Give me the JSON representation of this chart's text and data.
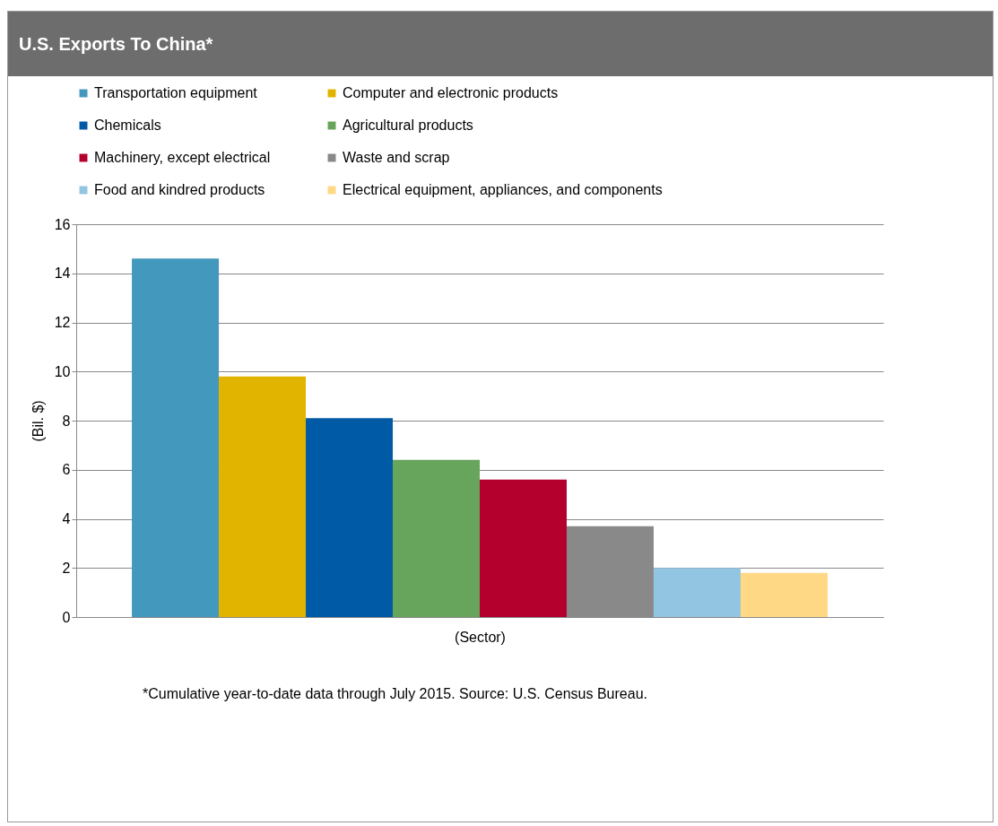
{
  "chart_data": {
    "type": "bar",
    "title": "U.S. Exports To China*",
    "xlabel": "(Sector)",
    "ylabel": "(Bil. $)",
    "categories": [
      null
    ],
    "series": [
      {
        "name": "Transportation equipment",
        "color": "#4398bd",
        "values": [
          14.6
        ]
      },
      {
        "name": "Computer and electronic products",
        "color": "#e1b400",
        "values": [
          9.8
        ]
      },
      {
        "name": "Chemicals",
        "color": "#005aa5",
        "values": [
          8.1
        ]
      },
      {
        "name": "Agricultural products",
        "color": "#67a45c",
        "values": [
          6.4
        ]
      },
      {
        "name": "Machinery, except electrical",
        "color": "#b3002d",
        "values": [
          5.6
        ]
      },
      {
        "name": "Waste and scrap",
        "color": "#898989",
        "values": [
          3.7
        ]
      },
      {
        "name": "Food and kindred products",
        "color": "#92c5e1",
        "values": [
          2.0
        ]
      },
      {
        "name": "Electrical equipment, appliances, and components",
        "color": "#ffd885",
        "values": [
          1.8
        ]
      }
    ],
    "ylim": [
      0,
      16
    ],
    "yticks": [
      0,
      2,
      4,
      6,
      8,
      10,
      12,
      14,
      16
    ],
    "grid": "y",
    "legend": "top",
    "tick_labels": "y",
    "annotations": [
      "*Cumulative year-to-date data through July 2015. Source: U.S. Census Bureau."
    ]
  }
}
